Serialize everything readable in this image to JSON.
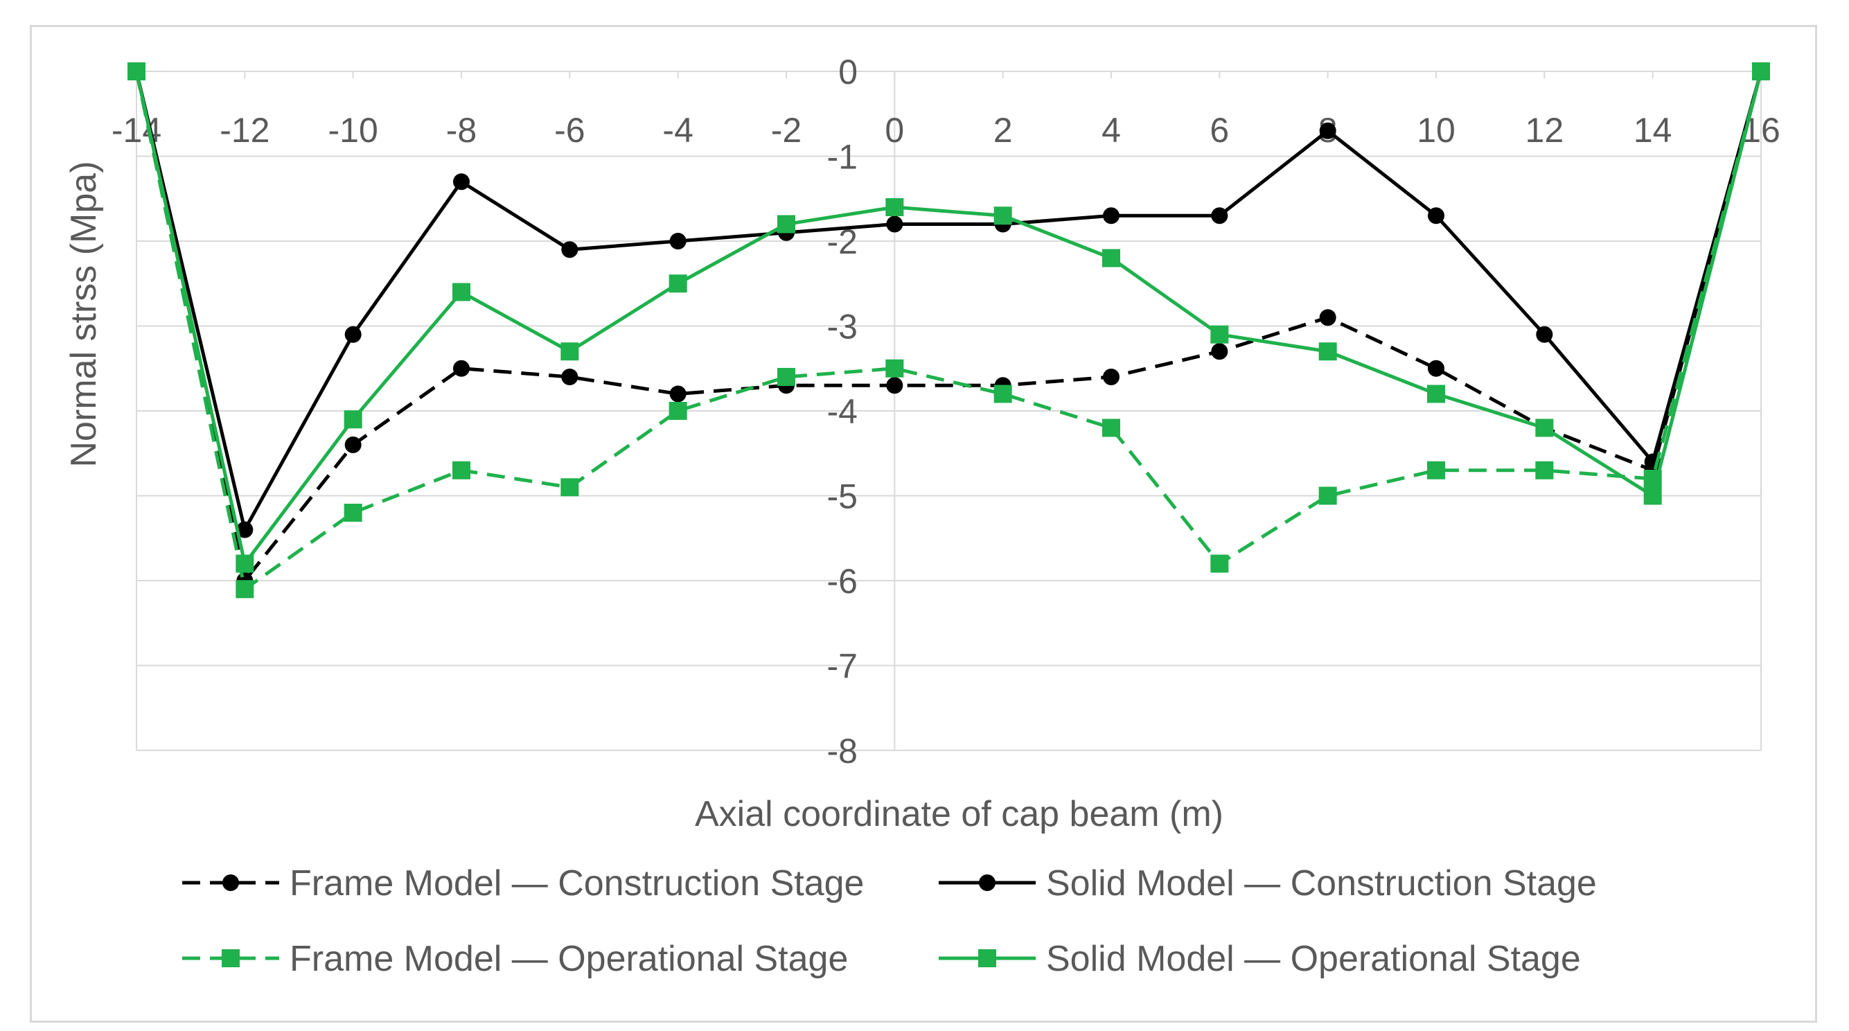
{
  "chart_data": {
    "type": "line",
    "title": "",
    "xlabel": "Axial coordinate of  cap beam (m)",
    "ylabel": "Normal strss (Mpa)",
    "x": [
      -14,
      -12,
      -10,
      -8,
      -6,
      -4,
      -2,
      0,
      2,
      4,
      6,
      8,
      10,
      12,
      14,
      16
    ],
    "xlim": [
      -14,
      16
    ],
    "ylim": [
      -8,
      0
    ],
    "x_ticks": [
      "-14",
      "-12",
      "-10",
      "-8",
      "-6",
      "-4",
      "-2",
      "0",
      "2",
      "4",
      "6",
      "8",
      "10",
      "12",
      "14",
      "16"
    ],
    "y_ticks": [
      "0",
      "-1",
      "-2",
      "-3",
      "-4",
      "-5",
      "-6",
      "-7",
      "-8"
    ],
    "grid": true,
    "legend_position": "bottom",
    "series": [
      {
        "name": "Frame Model — Construction Stage",
        "color": "#000000",
        "dash": true,
        "marker": "circle",
        "values": [
          0,
          -6.0,
          -4.4,
          -3.5,
          -3.6,
          -3.8,
          -3.7,
          -3.7,
          -3.7,
          -3.6,
          -3.3,
          -2.9,
          -3.5,
          -4.2,
          -4.7,
          0
        ]
      },
      {
        "name": "Solid Model — Construction Stage",
        "color": "#000000",
        "dash": false,
        "marker": "circle",
        "values": [
          0,
          -5.4,
          -3.1,
          -1.3,
          -2.1,
          -2.0,
          -1.9,
          -1.8,
          -1.8,
          -1.7,
          -1.7,
          -0.7,
          -1.7,
          -3.1,
          -4.6,
          0
        ]
      },
      {
        "name": "Frame Model — Operational Stage",
        "color": "#1fb14c",
        "dash": true,
        "marker": "square",
        "values": [
          0,
          -6.1,
          -5.2,
          -4.7,
          -4.9,
          -4.0,
          -3.6,
          -3.5,
          -3.8,
          -4.2,
          -5.8,
          -5.0,
          -4.7,
          -4.7,
          -4.8,
          0
        ]
      },
      {
        "name": "Solid Model — Operational Stage",
        "color": "#1fb14c",
        "dash": false,
        "marker": "square",
        "values": [
          0,
          -5.8,
          -4.1,
          -2.6,
          -3.3,
          -2.5,
          -1.8,
          -1.6,
          -1.7,
          -2.2,
          -3.1,
          -3.3,
          -3.8,
          -4.2,
          -5.0,
          0
        ]
      }
    ]
  }
}
